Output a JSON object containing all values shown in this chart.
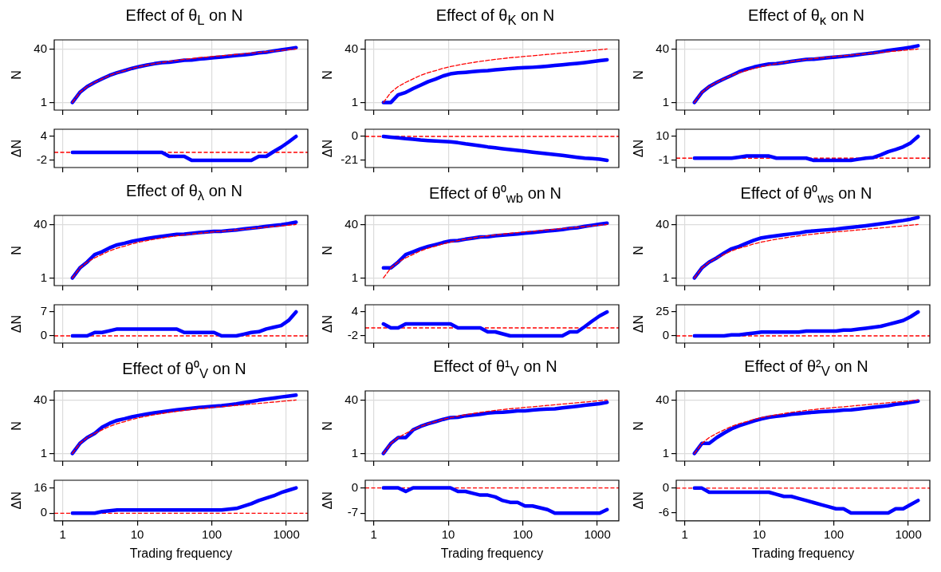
{
  "chart_data": [
    {
      "type": "line",
      "title": "Effect of θ$_{L}$ on N",
      "ylabel": "N",
      "log": "xy",
      "grid": true,
      "tick_labels": "y",
      "xlim": [
        0.77,
        1940
      ],
      "xticks": [
        1,
        10,
        100,
        1000
      ],
      "ylim": [
        0.59,
        75
      ],
      "yticks": [
        1,
        40
      ],
      "x": [
        1.35,
        1.7,
        2.13,
        2.69,
        3.38,
        4.26,
        5.37,
        6.76,
        8.51,
        10.7,
        13.5,
        17,
        21.4,
        26.9,
        33.9,
        42.7,
        53.7,
        67.6,
        85.1,
        107,
        135,
        170,
        214,
        269,
        339,
        427,
        537,
        676,
        851,
        1072,
        1349
      ],
      "series": [
        {
          "color": "#0000ff",
          "values": [
            1,
            2,
            3,
            4,
            5.1,
            6.5,
            7.8,
            9,
            10.5,
            11.9,
            13.2,
            14.5,
            15.7,
            16,
            17.2,
            18.5,
            18.7,
            19.9,
            20.9,
            22,
            23.1,
            24.3,
            25.5,
            26.8,
            28.2,
            30.6,
            32.1,
            34.9,
            37.6,
            40.6,
            44
          ]
        },
        {
          "color": "#ff0000",
          "line_style": "dashed",
          "values": [
            1,
            2,
            3,
            4,
            5.1,
            6.5,
            7.8,
            9,
            10.5,
            11.9,
            13.2,
            14.5,
            15.7,
            17,
            18.2,
            19.5,
            20.7,
            21.9,
            22.9,
            24,
            25.1,
            26.3,
            27.5,
            28.8,
            30.2,
            31.6,
            33.1,
            34.7,
            36.3,
            38,
            40
          ]
        }
      ]
    },
    {
      "type": "line",
      "ylabel": "ΔN",
      "log": "x",
      "grid": "x",
      "tick_labels": "y",
      "xlim": [
        0.77,
        1940
      ],
      "xticks": [
        1,
        10,
        100,
        1000
      ],
      "ylim": [
        -3.8,
        5.8
      ],
      "yticks": [
        -2,
        4
      ],
      "x": [
        1.35,
        1.7,
        2.13,
        2.69,
        3.38,
        4.26,
        5.37,
        6.76,
        8.51,
        10.7,
        13.5,
        17,
        21.4,
        26.9,
        33.9,
        42.7,
        53.7,
        67.6,
        85.1,
        107,
        135,
        170,
        214,
        269,
        339,
        427,
        537,
        676,
        851,
        1072,
        1349
      ],
      "color": "#0000ff",
      "ref_lines": [
        {
          "axis": "y",
          "value": 0,
          "color": "#ff0000",
          "line_style": "dashed"
        }
      ],
      "values": [
        0,
        0,
        0,
        0,
        0,
        0,
        0,
        0,
        0,
        0,
        0,
        0,
        0,
        -1,
        -1,
        -1,
        -2,
        -2,
        -2,
        -2,
        -2,
        -2,
        -2,
        -2,
        -2,
        -1,
        -1,
        0.2,
        1.3,
        2.6,
        4
      ]
    },
    {
      "type": "line",
      "title": "Effect of θ$_{K}$ on N",
      "ylabel": "N",
      "log": "xy",
      "grid": true,
      "tick_labels": "y",
      "xlim": [
        0.77,
        1940
      ],
      "xticks": [
        1,
        10,
        100,
        1000
      ],
      "ylim": [
        0.59,
        75
      ],
      "yticks": [
        1,
        40
      ],
      "x": [
        1.35,
        1.7,
        2.13,
        2.69,
        3.38,
        4.26,
        5.37,
        6.76,
        8.51,
        10.7,
        13.5,
        17,
        21.4,
        26.9,
        33.9,
        42.7,
        53.7,
        67.6,
        85.1,
        107,
        135,
        170,
        214,
        269,
        339,
        427,
        537,
        676,
        851,
        1072,
        1349
      ],
      "series": [
        {
          "color": "#0000ff",
          "values": [
            1,
            1,
            1.7,
            2,
            2.6,
            3.3,
            4.2,
            5,
            6.2,
            7.2,
            7.7,
            8,
            8.4,
            8.8,
            9,
            9.5,
            9.9,
            10.4,
            10.7,
            11,
            11.3,
            11.7,
            12.2,
            12.8,
            13.5,
            14.1,
            14.8,
            15.7,
            16.8,
            18,
            19
          ]
        },
        {
          "color": "#ff0000",
          "line_style": "dashed",
          "values": [
            1,
            2,
            3,
            4,
            5.1,
            6.5,
            7.8,
            9,
            10.5,
            11.9,
            13.2,
            14.5,
            15.7,
            17,
            18.2,
            19.5,
            20.7,
            21.9,
            22.9,
            24,
            25.1,
            26.3,
            27.5,
            28.8,
            30.2,
            31.6,
            33.1,
            34.7,
            36.3,
            38,
            40
          ]
        }
      ]
    },
    {
      "type": "line",
      "ylabel": "ΔN",
      "log": "x",
      "grid": "x",
      "tick_labels": "y",
      "xlim": [
        0.77,
        1940
      ],
      "xticks": [
        1,
        10,
        100,
        1000
      ],
      "ylim": [
        -27.3,
        6.3
      ],
      "yticks": [
        -21,
        0
      ],
      "x": [
        1.35,
        1.7,
        2.13,
        2.69,
        3.38,
        4.26,
        5.37,
        6.76,
        8.51,
        10.7,
        13.5,
        17,
        21.4,
        26.9,
        33.9,
        42.7,
        53.7,
        67.6,
        85.1,
        107,
        135,
        170,
        214,
        269,
        339,
        427,
        537,
        676,
        851,
        1072,
        1349
      ],
      "color": "#0000ff",
      "ref_lines": [
        {
          "axis": "y",
          "value": 0,
          "color": "#ff0000",
          "line_style": "dashed"
        }
      ],
      "values": [
        0,
        -0.7,
        -1.3,
        -2,
        -2.5,
        -3.2,
        -3.6,
        -4,
        -4.3,
        -4.7,
        -5.5,
        -6.5,
        -7.3,
        -8.2,
        -9.2,
        -10,
        -10.8,
        -11.5,
        -12.2,
        -13,
        -13.8,
        -14.6,
        -15.3,
        -16,
        -16.7,
        -17.5,
        -18.3,
        -19,
        -19.5,
        -20,
        -21
      ]
    },
    {
      "type": "line",
      "title": "Effect of θ$_{κ}$ on N",
      "ylabel": "N",
      "log": "xy",
      "grid": true,
      "tick_labels": "y",
      "xlim": [
        0.77,
        1940
      ],
      "xticks": [
        1,
        10,
        100,
        1000
      ],
      "ylim": [
        0.59,
        75
      ],
      "yticks": [
        1,
        40
      ],
      "x": [
        1.35,
        1.7,
        2.13,
        2.69,
        3.38,
        4.26,
        5.37,
        6.76,
        8.51,
        10.7,
        13.5,
        17,
        21.4,
        26.9,
        33.9,
        42.7,
        53.7,
        67.6,
        85.1,
        107,
        135,
        170,
        214,
        269,
        339,
        427,
        537,
        676,
        851,
        1072,
        1349
      ],
      "series": [
        {
          "color": "#0000ff",
          "values": [
            1,
            2,
            3,
            4,
            5.1,
            6.5,
            8.3,
            10,
            11.5,
            12.9,
            14.2,
            14.5,
            15.7,
            17,
            18.2,
            19.5,
            19.7,
            20.9,
            21.9,
            23,
            24.1,
            25.3,
            27,
            28.8,
            30.5,
            33.1,
            36.1,
            38.7,
            41.5,
            45,
            50
          ]
        },
        {
          "color": "#ff0000",
          "line_style": "dashed",
          "values": [
            1,
            2,
            3,
            4,
            5.1,
            6.5,
            7.8,
            9,
            10.5,
            11.9,
            13.2,
            14.5,
            15.7,
            17,
            18.2,
            19.5,
            20.7,
            21.9,
            22.9,
            24,
            25.1,
            26.3,
            27.5,
            28.8,
            30.2,
            31.6,
            33.1,
            34.7,
            36.3,
            38,
            40
          ]
        }
      ]
    },
    {
      "type": "line",
      "ylabel": "ΔN",
      "log": "x",
      "grid": "x",
      "tick_labels": "y",
      "xlim": [
        0.77,
        1940
      ],
      "xticks": [
        1,
        10,
        100,
        1000
      ],
      "ylim": [
        -4.3,
        13.3
      ],
      "yticks": [
        -1,
        10
      ],
      "x": [
        1.35,
        1.7,
        2.13,
        2.69,
        3.38,
        4.26,
        5.37,
        6.76,
        8.51,
        10.7,
        13.5,
        17,
        21.4,
        26.9,
        33.9,
        42.7,
        53.7,
        67.6,
        85.1,
        107,
        135,
        170,
        214,
        269,
        339,
        427,
        537,
        676,
        851,
        1072,
        1349
      ],
      "color": "#0000ff",
      "ref_lines": [
        {
          "axis": "y",
          "value": 0,
          "color": "#ff0000",
          "line_style": "dashed"
        }
      ],
      "values": [
        0,
        0,
        0,
        0,
        0,
        0,
        0.5,
        1,
        1,
        1,
        1,
        0,
        0,
        0,
        0,
        0,
        -1,
        -1,
        -1,
        -1,
        -1,
        -1,
        -0.5,
        0,
        0.3,
        1.5,
        3,
        4,
        5.2,
        7,
        10
      ]
    },
    {
      "type": "line",
      "title": "Effect of θ$_{λ}$ on N",
      "ylabel": "N",
      "log": "xy",
      "grid": true,
      "tick_labels": "y",
      "xlim": [
        0.77,
        1940
      ],
      "xticks": [
        1,
        10,
        100,
        1000
      ],
      "ylim": [
        0.59,
        75
      ],
      "yticks": [
        1,
        40
      ],
      "x": [
        1.35,
        1.7,
        2.13,
        2.69,
        3.38,
        4.26,
        5.37,
        6.76,
        8.51,
        10.7,
        13.5,
        17,
        21.4,
        26.9,
        33.9,
        42.7,
        53.7,
        67.6,
        85.1,
        107,
        135,
        170,
        214,
        269,
        339,
        427,
        537,
        676,
        851,
        1072,
        1349
      ],
      "series": [
        {
          "color": "#0000ff",
          "values": [
            1,
            2,
            3,
            5,
            6.1,
            8,
            9.8,
            11,
            12.5,
            13.9,
            15.2,
            16.5,
            17.7,
            19,
            20.2,
            20.5,
            21.7,
            22.9,
            23.9,
            25,
            25.1,
            26.3,
            27.5,
            29.3,
            31.2,
            32.8,
            35.1,
            37.2,
            39.3,
            42.5,
            47
          ]
        },
        {
          "color": "#ff0000",
          "line_style": "dashed",
          "values": [
            1,
            2,
            3,
            4,
            5.1,
            6.5,
            7.8,
            9,
            10.5,
            11.9,
            13.2,
            14.5,
            15.7,
            17,
            18.2,
            19.5,
            20.7,
            21.9,
            22.9,
            24,
            25.1,
            26.3,
            27.5,
            28.8,
            30.2,
            31.6,
            33.1,
            34.7,
            36.3,
            38,
            40
          ]
        }
      ]
    },
    {
      "type": "line",
      "ylabel": "ΔN",
      "log": "x",
      "grid": "x",
      "tick_labels": "y",
      "xlim": [
        0.77,
        1940
      ],
      "xticks": [
        1,
        10,
        100,
        1000
      ],
      "ylim": [
        -2.1,
        9.1
      ],
      "yticks": [
        0,
        7
      ],
      "x": [
        1.35,
        1.7,
        2.13,
        2.69,
        3.38,
        4.26,
        5.37,
        6.76,
        8.51,
        10.7,
        13.5,
        17,
        21.4,
        26.9,
        33.9,
        42.7,
        53.7,
        67.6,
        85.1,
        107,
        135,
        170,
        214,
        269,
        339,
        427,
        537,
        676,
        851,
        1072,
        1349
      ],
      "color": "#0000ff",
      "ref_lines": [
        {
          "axis": "y",
          "value": 0,
          "color": "#ff0000",
          "line_style": "dashed"
        }
      ],
      "values": [
        0,
        0,
        0,
        1,
        1,
        1.5,
        2,
        2,
        2,
        2,
        2,
        2,
        2,
        2,
        2,
        1,
        1,
        1,
        1,
        1,
        0,
        0,
        0,
        0.5,
        1,
        1.2,
        2,
        2.5,
        3,
        4.5,
        7
      ]
    },
    {
      "type": "line",
      "title": "Effect of θ⁰$_{wb}$ on N",
      "ylabel": "N",
      "log": "xy",
      "grid": true,
      "tick_labels": "y",
      "xlim": [
        0.77,
        1940
      ],
      "xticks": [
        1,
        10,
        100,
        1000
      ],
      "ylim": [
        0.59,
        75
      ],
      "yticks": [
        1,
        40
      ],
      "x": [
        1.35,
        1.7,
        2.13,
        2.69,
        3.38,
        4.26,
        5.37,
        6.76,
        8.51,
        10.7,
        13.5,
        17,
        21.4,
        26.9,
        33.9,
        42.7,
        53.7,
        67.6,
        85.1,
        107,
        135,
        170,
        214,
        269,
        339,
        427,
        537,
        676,
        851,
        1072,
        1349
      ],
      "series": [
        {
          "color": "#0000ff",
          "values": [
            2,
            2,
            3,
            5,
            6.1,
            7.5,
            8.8,
            10,
            11.5,
            12.9,
            13.2,
            14.5,
            15.7,
            17,
            17.2,
            18.5,
            19.2,
            19.9,
            20.9,
            22,
            23.1,
            24.3,
            25.5,
            26.8,
            28.2,
            30.6,
            32.1,
            35,
            38,
            41,
            44
          ]
        },
        {
          "color": "#ff0000",
          "line_style": "dashed",
          "values": [
            1,
            2,
            3,
            4,
            5.1,
            6.5,
            7.8,
            9,
            10.5,
            11.9,
            13.2,
            14.5,
            15.7,
            17,
            18.2,
            19.5,
            20.7,
            21.9,
            22.9,
            24,
            25.1,
            26.3,
            27.5,
            28.8,
            30.2,
            31.6,
            33.1,
            34.7,
            36.3,
            38,
            40
          ]
        }
      ]
    },
    {
      "type": "line",
      "ylabel": "ΔN",
      "log": "x",
      "grid": "x",
      "tick_labels": "y",
      "xlim": [
        0.77,
        1940
      ],
      "xticks": [
        1,
        10,
        100,
        1000
      ],
      "ylim": [
        -3.8,
        5.8
      ],
      "yticks": [
        -2,
        4
      ],
      "x": [
        1.35,
        1.7,
        2.13,
        2.69,
        3.38,
        4.26,
        5.37,
        6.76,
        8.51,
        10.7,
        13.5,
        17,
        21.4,
        26.9,
        33.9,
        42.7,
        53.7,
        67.6,
        85.1,
        107,
        135,
        170,
        214,
        269,
        339,
        427,
        537,
        676,
        851,
        1072,
        1349
      ],
      "color": "#0000ff",
      "ref_lines": [
        {
          "axis": "y",
          "value": 0,
          "color": "#ff0000",
          "line_style": "dashed"
        }
      ],
      "values": [
        1,
        0,
        0,
        1,
        1,
        1,
        1,
        1,
        1,
        1,
        0,
        0,
        0,
        0,
        -1,
        -1,
        -1.5,
        -2,
        -2,
        -2,
        -2,
        -2,
        -2,
        -2,
        -2,
        -1,
        -1,
        0.3,
        1.7,
        3,
        4
      ]
    },
    {
      "type": "line",
      "title": "Effect of θ⁰$_{ws}$ on N",
      "ylabel": "N",
      "log": "xy",
      "grid": true,
      "tick_labels": "y",
      "xlim": [
        0.77,
        1940
      ],
      "xticks": [
        1,
        10,
        100,
        1000
      ],
      "ylim": [
        0.59,
        75
      ],
      "yticks": [
        1,
        40
      ],
      "x": [
        1.35,
        1.7,
        2.13,
        2.69,
        3.38,
        4.26,
        5.37,
        6.76,
        8.51,
        10.7,
        13.5,
        17,
        21.4,
        26.9,
        33.9,
        42.7,
        53.7,
        67.6,
        85.1,
        107,
        135,
        170,
        214,
        269,
        339,
        427,
        537,
        676,
        851,
        1072,
        1349
      ],
      "series": [
        {
          "color": "#0000ff",
          "values": [
            1,
            2,
            3,
            4,
            5.6,
            7.5,
            8.8,
            11,
            13.5,
            15.9,
            17.2,
            18.5,
            19.7,
            21,
            22.2,
            24.5,
            25.7,
            26.9,
            27.9,
            29,
            31.1,
            32.8,
            34.5,
            36.8,
            39.2,
            42.1,
            45.1,
            48.7,
            52.8,
            58,
            65
          ]
        },
        {
          "color": "#ff0000",
          "line_style": "dashed",
          "values": [
            1,
            2,
            3,
            4,
            5.1,
            6.5,
            7.8,
            9,
            10.5,
            11.9,
            13.2,
            14.5,
            15.7,
            17,
            18.2,
            19.5,
            20.7,
            21.9,
            22.9,
            24,
            25.1,
            26.3,
            27.5,
            28.8,
            30.2,
            31.6,
            33.1,
            34.7,
            36.3,
            38,
            40
          ]
        }
      ]
    },
    {
      "type": "line",
      "ylabel": "ΔN",
      "log": "x",
      "grid": "x",
      "tick_labels": "y",
      "xlim": [
        0.77,
        1940
      ],
      "xticks": [
        1,
        10,
        100,
        1000
      ],
      "ylim": [
        -7.5,
        32.5
      ],
      "yticks": [
        0,
        25
      ],
      "x": [
        1.35,
        1.7,
        2.13,
        2.69,
        3.38,
        4.26,
        5.37,
        6.76,
        8.51,
        10.7,
        13.5,
        17,
        21.4,
        26.9,
        33.9,
        42.7,
        53.7,
        67.6,
        85.1,
        107,
        135,
        170,
        214,
        269,
        339,
        427,
        537,
        676,
        851,
        1072,
        1349
      ],
      "color": "#0000ff",
      "ref_lines": [
        {
          "axis": "y",
          "value": 0,
          "color": "#ff0000",
          "line_style": "dashed"
        }
      ],
      "values": [
        0,
        0,
        0,
        0,
        0,
        1,
        1,
        2,
        3,
        4,
        4,
        4,
        4,
        4,
        4,
        5,
        5,
        5,
        5,
        5,
        6,
        6,
        7,
        8,
        9,
        10,
        12,
        14,
        16,
        20,
        25
      ]
    },
    {
      "type": "line",
      "title": "Effect of θ⁰$_{V}$ on N",
      "ylabel": "N",
      "log": "xy",
      "grid": true,
      "tick_labels": "y",
      "xlim": [
        0.77,
        1940
      ],
      "xticks": [
        1,
        10,
        100,
        1000
      ],
      "ylim": [
        0.59,
        75
      ],
      "yticks": [
        1,
        40
      ],
      "x": [
        1.35,
        1.7,
        2.13,
        2.69,
        3.38,
        4.26,
        5.37,
        6.76,
        8.51,
        10.7,
        13.5,
        17,
        21.4,
        26.9,
        33.9,
        42.7,
        53.7,
        67.6,
        85.1,
        107,
        135,
        170,
        214,
        269,
        339,
        427,
        537,
        676,
        851,
        1072,
        1349
      ],
      "series": [
        {
          "color": "#0000ff",
          "values": [
            1,
            2,
            3,
            4,
            6.1,
            8,
            9.8,
            11,
            12.5,
            13.9,
            15.2,
            16.5,
            17.7,
            19,
            20.2,
            21.5,
            22.7,
            23.9,
            24.9,
            26,
            27.1,
            28.8,
            30.5,
            33.3,
            36.2,
            39.6,
            42.6,
            45.7,
            49.3,
            52.5,
            56
          ]
        },
        {
          "color": "#ff0000",
          "line_style": "dashed",
          "values": [
            1,
            2,
            3,
            4,
            5.1,
            6.5,
            7.8,
            9,
            10.5,
            11.9,
            13.2,
            14.5,
            15.7,
            17,
            18.2,
            19.5,
            20.7,
            21.9,
            22.9,
            24,
            25.1,
            26.3,
            27.5,
            28.8,
            30.2,
            31.6,
            33.1,
            34.7,
            36.3,
            38,
            40
          ]
        }
      ]
    },
    {
      "type": "line",
      "ylabel": "ΔN",
      "xlabel": "Trading frequency",
      "log": "x",
      "grid": "x",
      "xlim": [
        0.77,
        1940
      ],
      "xticks": [
        1,
        10,
        100,
        1000
      ],
      "ylim": [
        -4.8,
        20.8
      ],
      "yticks": [
        0,
        16
      ],
      "x": [
        1.35,
        1.7,
        2.13,
        2.69,
        3.38,
        4.26,
        5.37,
        6.76,
        8.51,
        10.7,
        13.5,
        17,
        21.4,
        26.9,
        33.9,
        42.7,
        53.7,
        67.6,
        85.1,
        107,
        135,
        170,
        214,
        269,
        339,
        427,
        537,
        676,
        851,
        1072,
        1349
      ],
      "color": "#0000ff",
      "ref_lines": [
        {
          "axis": "y",
          "value": 0,
          "color": "#ff0000",
          "line_style": "dashed"
        }
      ],
      "values": [
        0,
        0,
        0,
        0,
        1,
        1.5,
        2,
        2,
        2,
        2,
        2,
        2,
        2,
        2,
        2,
        2,
        2,
        2,
        2,
        2,
        2,
        2.5,
        3,
        4.5,
        6,
        8,
        9.5,
        11,
        13,
        14.5,
        16
      ]
    },
    {
      "type": "line",
      "title": "Effect of θ¹$_{V}$ on N",
      "ylabel": "N",
      "log": "xy",
      "grid": true,
      "tick_labels": "y",
      "xlim": [
        0.77,
        1940
      ],
      "xticks": [
        1,
        10,
        100,
        1000
      ],
      "ylim": [
        0.59,
        75
      ],
      "yticks": [
        1,
        40
      ],
      "x": [
        1.35,
        1.7,
        2.13,
        2.69,
        3.38,
        4.26,
        5.37,
        6.76,
        8.51,
        10.7,
        13.5,
        17,
        21.4,
        26.9,
        33.9,
        42.7,
        53.7,
        67.6,
        85.1,
        107,
        135,
        170,
        214,
        269,
        339,
        427,
        537,
        676,
        851,
        1072,
        1349
      ],
      "series": [
        {
          "color": "#0000ff",
          "values": [
            1,
            2,
            3,
            3,
            5.1,
            6.5,
            7.8,
            9,
            10.5,
            11.9,
            12.2,
            13.5,
            14.2,
            15,
            16.2,
            17,
            17.2,
            17.9,
            18.9,
            19,
            20.1,
            20.8,
            21.5,
            21.8,
            23.2,
            24.6,
            26.1,
            27.7,
            29.3,
            31,
            34
          ]
        },
        {
          "color": "#ff0000",
          "line_style": "dashed",
          "values": [
            1,
            2,
            3,
            4,
            5.1,
            6.5,
            7.8,
            9,
            10.5,
            11.9,
            13.2,
            14.5,
            15.7,
            17,
            18.2,
            19.5,
            20.7,
            21.9,
            22.9,
            24,
            25.1,
            26.3,
            27.5,
            28.8,
            30.2,
            31.6,
            33.1,
            34.7,
            36.3,
            38,
            40
          ]
        }
      ]
    },
    {
      "type": "line",
      "ylabel": "ΔN",
      "xlabel": "Trading frequency",
      "log": "x",
      "grid": "x",
      "xlim": [
        0.77,
        1940
      ],
      "xticks": [
        1,
        10,
        100,
        1000
      ],
      "ylim": [
        -9.1,
        2.1
      ],
      "yticks": [
        -7,
        0
      ],
      "x": [
        1.35,
        1.7,
        2.13,
        2.69,
        3.38,
        4.26,
        5.37,
        6.76,
        8.51,
        10.7,
        13.5,
        17,
        21.4,
        26.9,
        33.9,
        42.7,
        53.7,
        67.6,
        85.1,
        107,
        135,
        170,
        214,
        269,
        339,
        427,
        537,
        676,
        851,
        1072,
        1349
      ],
      "color": "#0000ff",
      "ref_lines": [
        {
          "axis": "y",
          "value": 0,
          "color": "#ff0000",
          "line_style": "dashed"
        }
      ],
      "values": [
        0,
        0,
        0,
        -1,
        0,
        0,
        0,
        0,
        0,
        0,
        -1,
        -1,
        -1.5,
        -2,
        -2,
        -2.5,
        -3.5,
        -4,
        -4,
        -5,
        -5,
        -5.5,
        -6,
        -7,
        -7,
        -7,
        -7,
        -7,
        -7,
        -7,
        -6
      ]
    },
    {
      "type": "line",
      "title": "Effect of θ²$_{V}$ on N",
      "ylabel": "N",
      "log": "xy",
      "grid": true,
      "tick_labels": "y",
      "xlim": [
        0.77,
        1940
      ],
      "xticks": [
        1,
        10,
        100,
        1000
      ],
      "ylim": [
        0.59,
        75
      ],
      "yticks": [
        1,
        40
      ],
      "x": [
        1.35,
        1.7,
        2.13,
        2.69,
        3.38,
        4.26,
        5.37,
        6.76,
        8.51,
        10.7,
        13.5,
        17,
        21.4,
        26.9,
        33.9,
        42.7,
        53.7,
        67.6,
        85.1,
        107,
        135,
        170,
        214,
        269,
        339,
        427,
        537,
        676,
        851,
        1072,
        1349
      ],
      "series": [
        {
          "color": "#0000ff",
          "values": [
            1,
            2,
            2,
            3,
            4.1,
            5.5,
            6.8,
            8,
            9.5,
            10.9,
            12.2,
            13,
            13.7,
            15,
            15.7,
            16.5,
            17.2,
            17.9,
            18.4,
            19,
            20.1,
            20.3,
            21.5,
            22.8,
            24.2,
            25.6,
            27.1,
            29.7,
            31.3,
            34,
            37
          ]
        },
        {
          "color": "#ff0000",
          "line_style": "dashed",
          "values": [
            1,
            2,
            3,
            4,
            5.1,
            6.5,
            7.8,
            9,
            10.5,
            11.9,
            13.2,
            14.5,
            15.7,
            17,
            18.2,
            19.5,
            20.7,
            21.9,
            22.9,
            24,
            25.1,
            26.3,
            27.5,
            28.8,
            30.2,
            31.6,
            33.1,
            34.7,
            36.3,
            38,
            40
          ]
        }
      ]
    },
    {
      "type": "line",
      "ylabel": "ΔN",
      "xlabel": "Trading frequency",
      "log": "x",
      "grid": "x",
      "xlim": [
        0.77,
        1940
      ],
      "xticks": [
        1,
        10,
        100,
        1000
      ],
      "ylim": [
        -7.9,
        1.9
      ],
      "yticks": [
        -6,
        0
      ],
      "x": [
        1.35,
        1.7,
        2.13,
        2.69,
        3.38,
        4.26,
        5.37,
        6.76,
        8.51,
        10.7,
        13.5,
        17,
        21.4,
        26.9,
        33.9,
        42.7,
        53.7,
        67.6,
        85.1,
        107,
        135,
        170,
        214,
        269,
        339,
        427,
        537,
        676,
        851,
        1072,
        1349
      ],
      "color": "#0000ff",
      "ref_lines": [
        {
          "axis": "y",
          "value": 0,
          "color": "#ff0000",
          "line_style": "dashed"
        }
      ],
      "values": [
        0,
        0,
        -1,
        -1,
        -1,
        -1,
        -1,
        -1,
        -1,
        -1,
        -1,
        -1.5,
        -2,
        -2,
        -2.5,
        -3,
        -3.5,
        -4,
        -4.5,
        -5,
        -5,
        -6,
        -6,
        -6,
        -6,
        -6,
        -6,
        -5,
        -5,
        -4,
        -3
      ]
    }
  ]
}
